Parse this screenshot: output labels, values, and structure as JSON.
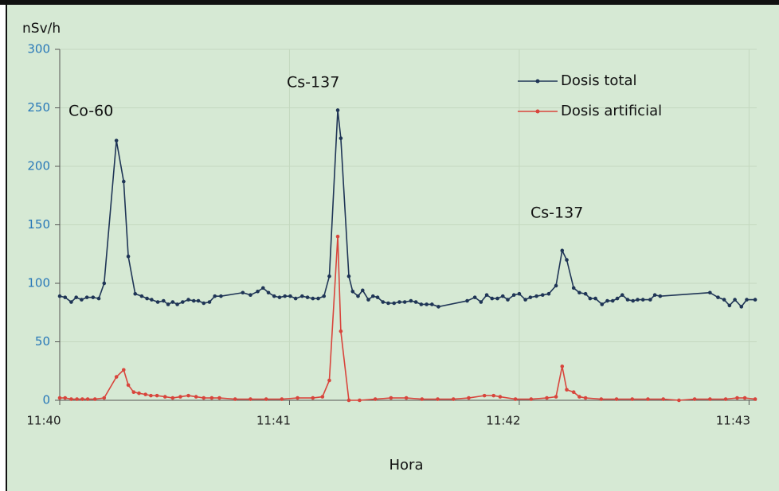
{
  "chart_data": {
    "type": "line",
    "y_label": "nSv/h",
    "x_label": "Hora",
    "annotations": [
      "Co-60",
      "Cs-137",
      "Cs-137"
    ],
    "xlim": [
      0,
      182
    ],
    "xticks": [
      {
        "value": 0,
        "label": "11:40"
      },
      {
        "value": 60,
        "label": "11:41"
      },
      {
        "value": 120,
        "label": "11:42"
      },
      {
        "value": 180,
        "label": "11:43"
      }
    ],
    "ylim": [
      0,
      300
    ],
    "yticks": [
      0,
      50,
      100,
      150,
      200,
      250,
      300
    ],
    "grid": true,
    "legend": "top-right",
    "series": [
      {
        "name": "Dosis total",
        "color": "#1f3556",
        "x": [
          0,
          1.4,
          3,
          4.3,
          5.7,
          7.1,
          8.7,
          10.2,
          11.6,
          14.8,
          16.7,
          17.9,
          19.7,
          21.4,
          22.8,
          24,
          25.6,
          27.1,
          28.3,
          29.5,
          30.7,
          32.1,
          33.6,
          35,
          36.2,
          37.6,
          39.1,
          40.5,
          42.1,
          47.8,
          49.8,
          51.7,
          53.1,
          54.5,
          56,
          57.4,
          58.8,
          60.2,
          61.6,
          63.3,
          64.7,
          66.1,
          67.5,
          69,
          70.4,
          72.6,
          73.4,
          75.5,
          76.5,
          77.9,
          79.1,
          80.6,
          81.8,
          83,
          84.4,
          85.8,
          87.3,
          88.7,
          90.1,
          91.7,
          93,
          94.4,
          95.8,
          97.2,
          98.9,
          106.4,
          108.4,
          110,
          111.5,
          112.9,
          114.3,
          115.7,
          117,
          118.6,
          120,
          121.6,
          122.9,
          124.5,
          126.1,
          127.7,
          129.6,
          131.2,
          132.4,
          134.2,
          135.7,
          137.3,
          138.5,
          139.9,
          141.6,
          143,
          144.4,
          145.6,
          146.9,
          148.3,
          149.7,
          150.9,
          152.3,
          154.2,
          155.4,
          156.8,
          169.8,
          171.9,
          173.5,
          174.9,
          176.3,
          178,
          179.4,
          181.6
        ],
        "values": [
          89,
          88,
          84,
          88,
          86,
          88,
          88,
          87,
          100,
          222,
          187,
          123,
          91,
          89,
          87,
          86,
          84,
          85,
          82,
          84,
          82,
          84,
          86,
          85,
          85,
          83,
          84,
          89,
          89,
          92,
          90,
          93,
          96,
          92,
          89,
          88,
          89,
          89,
          87,
          89,
          88,
          87,
          87,
          89,
          106,
          248,
          224,
          106,
          93,
          89,
          94,
          86,
          89,
          88,
          84,
          83,
          83,
          84,
          84,
          85,
          84,
          82,
          82,
          82,
          80,
          85,
          88,
          84,
          90,
          87,
          87,
          89,
          86,
          90,
          91,
          86,
          88,
          89,
          90,
          91,
          98,
          128,
          120,
          96,
          92,
          91,
          87,
          87,
          82,
          85,
          85,
          87,
          90,
          86,
          85,
          86,
          86,
          86,
          90,
          89,
          92,
          88,
          86,
          81,
          86,
          80,
          86,
          86
        ]
      },
      {
        "name": "Dosis artificial",
        "color": "#d8453c",
        "x": [
          0,
          1.4,
          3,
          4.5,
          5.9,
          7.3,
          9.2,
          11.6,
          14.8,
          16.7,
          17.9,
          19.3,
          20.7,
          22.4,
          23.8,
          25.4,
          27.5,
          29.5,
          31.5,
          33.6,
          35.6,
          37.6,
          39.7,
          41.7,
          45.8,
          49.8,
          53.9,
          58,
          62.1,
          66.1,
          68.6,
          70.4,
          72.6,
          73.4,
          75.5,
          78.3,
          82.4,
          86.5,
          90.5,
          94.6,
          98.7,
          102.8,
          106.8,
          110.9,
          113.3,
          115,
          119,
          123.1,
          127.2,
          129.6,
          131.2,
          132.4,
          134.2,
          135.7,
          137.3,
          141.4,
          145.4,
          149.5,
          153.6,
          157.6,
          161.7,
          165.8,
          169.8,
          173.9,
          176.9,
          178.9,
          181.6
        ],
        "values": [
          2,
          2,
          1,
          1,
          1,
          1,
          1,
          2,
          20,
          26,
          13,
          7,
          6,
          5,
          4,
          4,
          3,
          2,
          3,
          4,
          3,
          2,
          2,
          2,
          1,
          1,
          1,
          1,
          2,
          2,
          3,
          17,
          140,
          59,
          0,
          0,
          1,
          2,
          2,
          1,
          1,
          1,
          2,
          4,
          4,
          3,
          1,
          1,
          2,
          3,
          29,
          9,
          7,
          3,
          2,
          1,
          1,
          1,
          1,
          1,
          0,
          1,
          1,
          1,
          2,
          2,
          1
        ]
      }
    ]
  }
}
